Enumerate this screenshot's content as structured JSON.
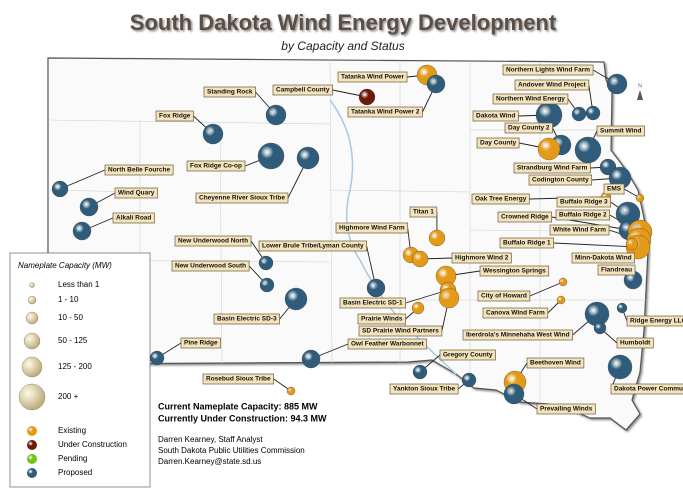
{
  "title": "South Dakota Wind Energy Development",
  "subtitle": "by Capacity and Status",
  "legend": {
    "title": "Nameplate Capacity (MW)",
    "sizes": [
      "Less than 1",
      "1 - 10",
      "10 - 50",
      "50 - 125",
      "125 - 200",
      "200 +"
    ],
    "statuses": [
      {
        "label": "Existing",
        "color": "#e39a17"
      },
      {
        "label": "Under Construction",
        "color": "#6e1808"
      },
      {
        "label": "Pending",
        "color": "#72c21c"
      },
      {
        "label": "Proposed",
        "color": "#2f5c7a"
      }
    ]
  },
  "summary": [
    "Current Nameplate Capacity: 885 MW",
    "Currently Under Construction: 94.3 MW"
  ],
  "credits": [
    "Darren Kearney, Staff Analyst",
    "South Dakota Public Utilities Commission",
    "Darren.Kearney@state.sd.us"
  ],
  "projects": [
    "Tatanka Wind Power",
    "Campbell County",
    "Tatanka Wind Power 2",
    "Standing Rock",
    "Fox Ridge",
    "Fox Ridge Co-op",
    "Cheyenne River Sioux Tribe",
    "North Belle Fourche",
    "Wind Quary",
    "Alkali Road",
    "Northern Lights Wind Farm",
    "Andover Wind Project",
    "Northern Wind Energy",
    "Dakota Wind",
    "Day County 2",
    "Summit Wind",
    "Day County",
    "Strandburg Wind Farm",
    "Codington County",
    "Oak Tree Energy",
    "EMS",
    "Buffalo Ridge 3",
    "Crowned Ridge",
    "Buffalo Ridge 2",
    "White Wind Farm",
    "Buffalo Ridge 1",
    "Minn-Dakota Wind",
    "Flandreau",
    "Titan 1",
    "Highmore Wind Farm",
    "Highmore Wind 2",
    "New Underwood North",
    "Lower Brule Tribe/Lyman County",
    "New Underwood South",
    "Wessington Springs",
    "Basin Electric SD-1",
    "City of Howard",
    "Canova Wind Farm",
    "Basin Electric SD-3",
    "Prairie Winds",
    "Iberdrola's Minnehaha West Wind",
    "Ridge Energy LLC",
    "SD Prairie Wind Partners",
    "Owl Feather Warbonnet",
    "Humboldt",
    "Pine Ridge",
    "Gregory County",
    "Beethoven Wind",
    "Dakota Power Community Wind",
    "Rosebud Sioux Tribe",
    "Yankton Sioux Tribe",
    "Prevailing Winds"
  ]
}
